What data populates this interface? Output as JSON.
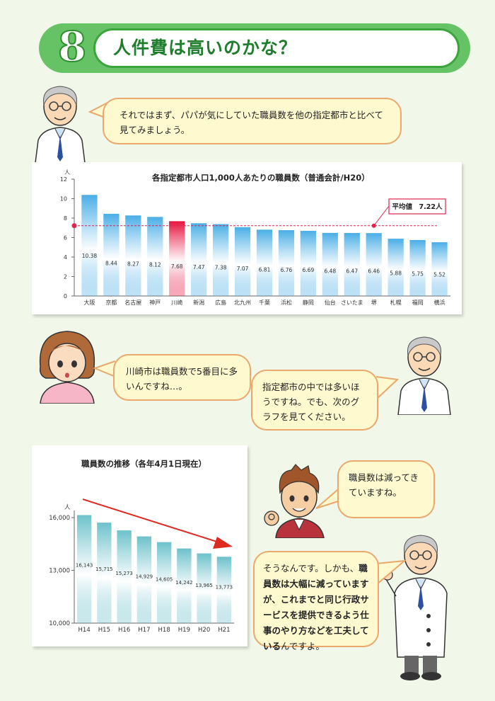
{
  "header": {
    "section_number": "8",
    "title": "人件費は高いのかな？"
  },
  "bubbles": {
    "b1": "それではまず、パパが気にしていた職員数を他の指定都市と比べて見てみましょう。",
    "b2": "川崎市は職員数で5番目に多いんですね…。",
    "b3": "指定都市の中では多いほうですね。でも、次のグラフを見てください。",
    "b4": "職員数は減ってきていますね。",
    "b5_a": "そうなんです。しかも、",
    "b5_b": "職員数は大幅に減っていますが、これまでと同じ行政サービスを提供できるよう仕事のやり方などを工夫している",
    "b5_c": "んですよ。"
  },
  "chart_data": [
    {
      "type": "bar",
      "title": "各指定都市人口1,000人あたりの職員数（普通会計/H20）",
      "ylabel": "人",
      "ylim": [
        0,
        12
      ],
      "yticks": [
        "0",
        "2",
        "4",
        "6",
        "8",
        "10",
        "12"
      ],
      "categories": [
        "大阪",
        "京都",
        "名古屋",
        "神戸",
        "川崎",
        "新潟",
        "広島",
        "北九州",
        "千葉",
        "浜松",
        "静岡",
        "仙台",
        "さいたま",
        "堺",
        "札幌",
        "福岡",
        "横浜"
      ],
      "values": [
        10.38,
        8.44,
        8.27,
        8.12,
        7.68,
        7.47,
        7.38,
        7.07,
        6.81,
        6.76,
        6.69,
        6.48,
        6.47,
        6.46,
        5.88,
        5.75,
        5.52
      ],
      "value_labels": [
        "10.38",
        "8.44",
        "8.27",
        "8.12",
        "7.68",
        "7.47",
        "7.38",
        "7.07",
        "6.81",
        "6.76",
        "6.69",
        "6.48",
        "6.47",
        "6.46",
        "5.88",
        "5.75",
        "5.52"
      ],
      "highlight": "川崎",
      "average": {
        "label": "平均値　7.22人",
        "value": 7.22
      },
      "colors": {
        "bar": "#4aaee6",
        "highlight": "#e8133e",
        "average": "#e0244e"
      }
    },
    {
      "type": "bar",
      "title": "職員数の推移（各年4月1日現在）",
      "ylabel": "人",
      "ylim": [
        10000,
        16000
      ],
      "yticks": [
        "10,000",
        "13,000",
        "16,000"
      ],
      "yticks_values": [
        10000,
        13000,
        16000
      ],
      "categories": [
        "H14",
        "H15",
        "H16",
        "H17",
        "H18",
        "H19",
        "H20",
        "H21"
      ],
      "values": [
        16143,
        15715,
        15273,
        14929,
        14605,
        14242,
        13965,
        13773
      ],
      "value_labels": [
        "16,143",
        "15,715",
        "15,273",
        "14,929",
        "14,605",
        "14,242",
        "13,965",
        "13,773"
      ],
      "trend": "decreasing",
      "colors": {
        "bar": "#6cc1cb",
        "arrow": "#dd2b22"
      }
    }
  ]
}
